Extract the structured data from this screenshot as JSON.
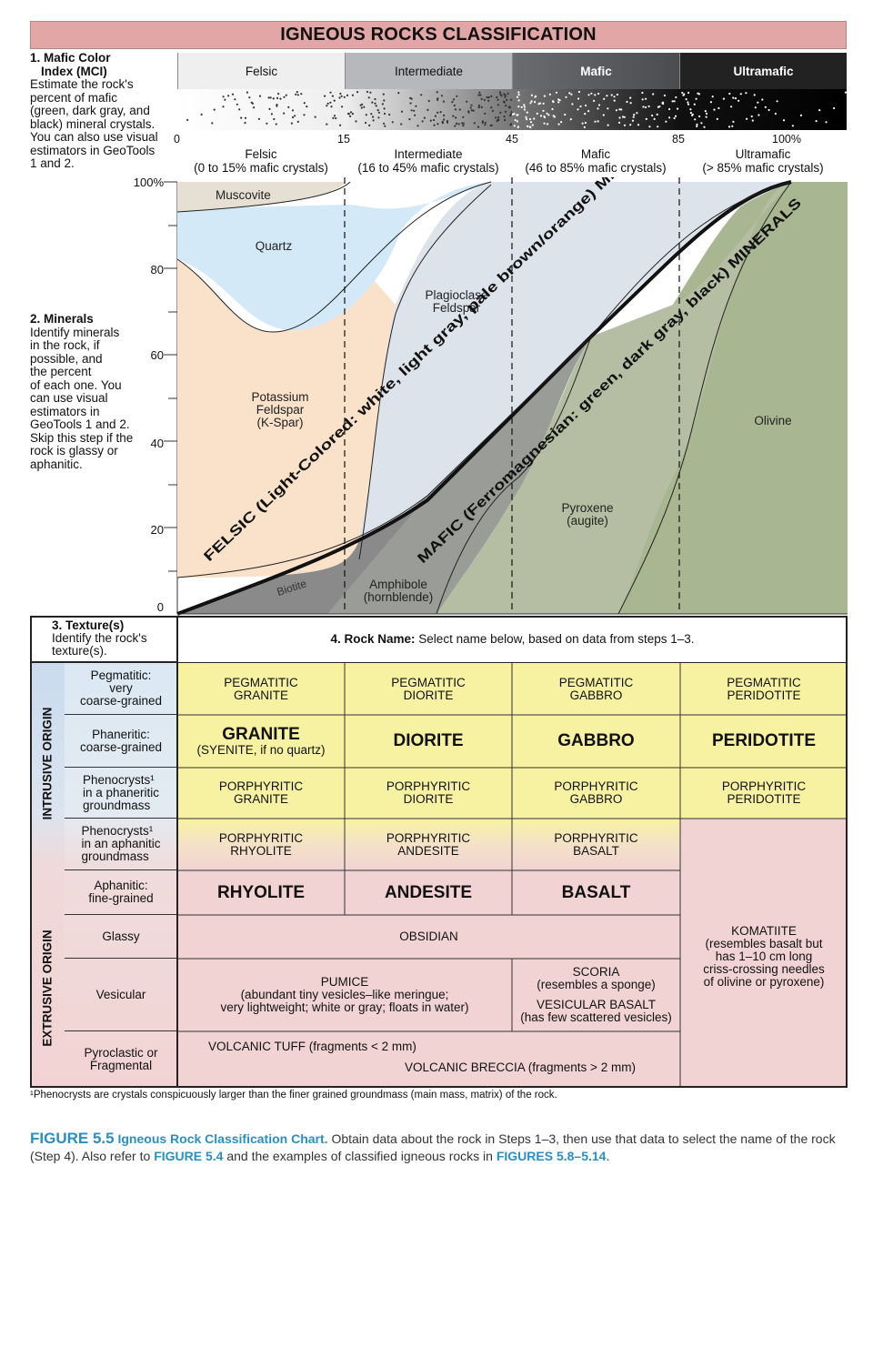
{
  "title": "IGNEOUS ROCKS CLASSIFICATION",
  "step1": {
    "heading_line1": "1. Mafic Color",
    "heading_line2": "Index (MCI)",
    "body": [
      "Estimate the rock's",
      "percent of mafic",
      "(green, dark gray, and",
      "black) mineral crystals.",
      "You can also use visual",
      "estimators in GeoTools",
      "1 and 2."
    ]
  },
  "mci_bar": {
    "labels": [
      "Felsic",
      "Intermediate",
      "Mafic",
      "Ultramafic"
    ],
    "colors": [
      "#efefef",
      "#b6b8bb",
      "#55575a",
      "#232323"
    ],
    "ticks": [
      "0",
      "15",
      "45",
      "85",
      "100%"
    ],
    "categories": [
      {
        "name": "Felsic",
        "range": "(0 to 15% mafic crystals)"
      },
      {
        "name": "Intermediate",
        "range": "(16 to 45% mafic crystals)"
      },
      {
        "name": "Mafic",
        "range": "(46 to 85% mafic crystals)"
      },
      {
        "name": "Ultramafic",
        "range": "(> 85% mafic crystals)"
      }
    ]
  },
  "step2": {
    "heading": "2. Minerals",
    "body": [
      "Identify minerals",
      "in the rock, if",
      "possible, and",
      "the percent",
      "of each one. You",
      "can use visual",
      "estimators in",
      "GeoTools 1 and 2.",
      "Skip this step if the",
      "rock is glassy or",
      "aphanitic."
    ]
  },
  "chart_data": {
    "type": "area",
    "x": [
      0,
      15,
      45,
      85,
      100
    ],
    "x_unit": "% mafic crystals",
    "ylim": [
      0,
      100
    ],
    "y_ticks": [
      "100%",
      "80",
      "60",
      "40",
      "20",
      "0"
    ],
    "minerals": [
      {
        "name": "Muscovite",
        "color": "#e6e0d4"
      },
      {
        "name": "Quartz",
        "color": "#d3e9f7"
      },
      {
        "name": "Plagioclase Feldspar",
        "color": "#dde3ea"
      },
      {
        "name": "Potassium Feldspar (K-Spar)",
        "color": "#f9e2c9"
      },
      {
        "name": "Biotite",
        "color": "#8a8a8a"
      },
      {
        "name": "Amphibole (hornblende)",
        "color": "#9a9c98"
      },
      {
        "name": "Pyroxene (augite)",
        "color": "#b5bea2"
      },
      {
        "name": "Olivine",
        "color": "#a8b691"
      }
    ],
    "labels": {
      "muscovite": "Muscovite",
      "quartz": "Quartz",
      "plag1": "Plagioclase",
      "plag2": "Feldspar",
      "kspar1": "Potassium",
      "kspar2": "Feldspar",
      "kspar3": "(K-Spar)",
      "biotite": "Biotite",
      "amph1": "Amphibole",
      "amph2": "(hornblende)",
      "pyx1": "Pyroxene",
      "pyx2": "(augite)",
      "olivine": "Olivine",
      "felsic_band": "FELSIC (Light-Colored: white, light gray, pale brown/orange) MINERALS",
      "mafic_band": "MAFIC (Ferromagnesian: green, dark gray, black) MINERALS"
    }
  },
  "step3": {
    "heading": "3. Texture(s)",
    "body": [
      "Identify the rock's",
      "texture(s)."
    ]
  },
  "step4": {
    "heading": "4. Rock Name:",
    "body": "Select name below, based on data from steps 1–3."
  },
  "origins": {
    "intrusive": "INTRUSIVE ORIGIN",
    "extrusive": "EXTRUSIVE ORIGIN"
  },
  "textures": [
    [
      "Pegmatitic:",
      "very",
      "coarse-grained"
    ],
    [
      "Phaneritic:",
      "coarse-grained"
    ],
    [
      "Phenocrysts¹",
      "in a phaneritic",
      "groundmass"
    ],
    [
      "Phenocrysts¹",
      "in an aphanitic",
      "groundmass"
    ],
    [
      "Aphanitic:",
      "fine-grained"
    ],
    [
      "Glassy"
    ],
    [
      "Vesicular"
    ],
    [
      "Pyroclastic or",
      "Fragmental"
    ]
  ],
  "rocks": {
    "pegmatitic": [
      [
        "PEGMATITIC",
        "GRANITE"
      ],
      [
        "PEGMATITIC",
        "DIORITE"
      ],
      [
        "PEGMATITIC",
        "GABBRO"
      ],
      [
        "PEGMATITIC",
        "PERIDOTITE"
      ]
    ],
    "phaneritic": [
      "GRANITE",
      "DIORITE",
      "GABBRO",
      "PERIDOTITE"
    ],
    "granite_note": "(SYENITE, if no quartz)",
    "porph_phaneritic": [
      [
        "PORPHYRITIC",
        "GRANITE"
      ],
      [
        "PORPHYRITIC",
        "DIORITE"
      ],
      [
        "PORPHYRITIC",
        "GABBRO"
      ],
      [
        "PORPHYRITIC",
        "PERIDOTITE"
      ]
    ],
    "porph_aphanitic": [
      [
        "PORPHYRITIC",
        "RHYOLITE"
      ],
      [
        "PORPHYRITIC",
        "ANDESITE"
      ],
      [
        "PORPHYRITIC",
        "BASALT"
      ]
    ],
    "aphanitic": [
      "RHYOLITE",
      "ANDESITE",
      "BASALT"
    ],
    "glassy": "OBSIDIAN",
    "pumice": [
      "PUMICE",
      "(abundant tiny vesicles–like meringue;",
      "very lightweight; white or gray; floats in water)"
    ],
    "scoria": [
      "SCORIA",
      "(resembles a sponge)"
    ],
    "vesicular_basalt": [
      "VESICULAR BASALT",
      "(has few scattered vesicles)"
    ],
    "tuff": "VOLCANIC TUFF (fragments < 2 mm)",
    "breccia": "VOLCANIC BRECCIA (fragments > 2 mm)",
    "komatiite": [
      "KOMATIITE",
      "(resembles basalt but",
      "has 1–10 cm long",
      "criss-crossing needles",
      "of olivine or pyroxene)"
    ]
  },
  "colors": {
    "yellow": "#f7f2a2",
    "pink": "#f2d3d3",
    "title": "#e3a6a6",
    "texture_blue": "#dbe8f3",
    "accent_blue": "#2a8fc4"
  },
  "footnote": "¹Phenocrysts are crystals conspicuously larger than the finer grained groundmass (main mass, matrix) of the rock.",
  "caption": {
    "figure": "FIGURE 5.5",
    "title": "Igneous Rock Classification Chart.",
    "text1": "Obtain data about the rock in Steps 1–3, then use that data to select the name of the rock (Step 4). Also refer to",
    "ref1": "FIGURE 5.4",
    "text2": "and the examples of classified igneous rocks in",
    "ref2": "FIGURES 5.8–5.14",
    "text3": "."
  }
}
